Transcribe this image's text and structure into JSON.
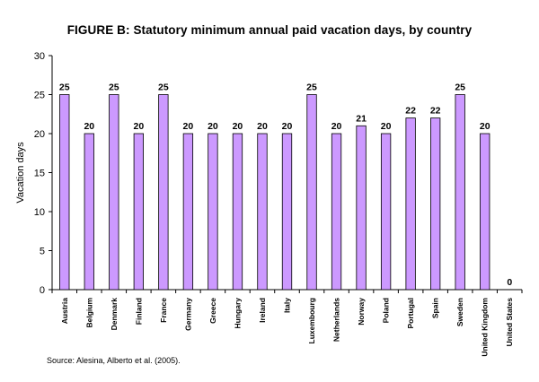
{
  "chart_data": {
    "type": "bar",
    "title": "FIGURE B:  Statutory minimum annual paid vacation days, by country",
    "ylabel": "Vacation days",
    "xlabel": "",
    "ylim": [
      0,
      30
    ],
    "yticks": [
      0,
      5,
      10,
      15,
      20,
      25,
      30
    ],
    "grid": false,
    "bar_color": "#cc99ff",
    "categories": [
      "Austria",
      "Belgium",
      "Denmark",
      "Finland",
      "France",
      "Germany",
      "Greece",
      "Hungary",
      "Ireland",
      "Italy",
      "Luxembourg",
      "Netherlands",
      "Norway",
      "Poland",
      "Portugal",
      "Spain",
      "Sweden",
      "United Kingdom",
      "United States"
    ],
    "values": [
      25,
      20,
      25,
      20,
      25,
      20,
      20,
      20,
      20,
      20,
      25,
      20,
      21,
      20,
      22,
      22,
      25,
      20,
      0
    ],
    "data_labels": [
      "25",
      "20",
      "25",
      "20",
      "25",
      "20",
      "20",
      "20",
      "20",
      "20",
      "25",
      "20",
      "21",
      "20",
      "22",
      "22",
      "25",
      "20",
      "0"
    ],
    "source": "Source: Alesina,  Alberto et al. (2005)."
  }
}
